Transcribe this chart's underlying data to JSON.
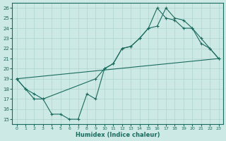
{
  "xlabel": "Humidex (Indice chaleur)",
  "xlim": [
    -0.5,
    23.5
  ],
  "ylim": [
    14.5,
    26.5
  ],
  "xticks": [
    0,
    1,
    2,
    3,
    4,
    5,
    6,
    7,
    8,
    9,
    10,
    11,
    12,
    13,
    14,
    15,
    16,
    17,
    18,
    19,
    20,
    21,
    22,
    23
  ],
  "yticks": [
    15,
    16,
    17,
    18,
    19,
    20,
    21,
    22,
    23,
    24,
    25,
    26
  ],
  "bg_color": "#cce9e5",
  "line_color": "#1a6b5e",
  "grid_color": "#aed4cf",
  "line1_x": [
    0,
    1,
    2,
    3,
    4,
    5,
    6,
    7,
    8,
    9,
    10,
    11,
    12,
    13,
    14,
    15,
    16,
    17,
    18,
    19,
    20,
    21,
    22,
    23
  ],
  "line1_y": [
    19,
    18,
    17,
    17,
    15.5,
    15.5,
    15,
    15,
    17.5,
    17,
    20,
    20.5,
    22,
    22.2,
    23,
    24,
    24.2,
    26,
    25,
    24.8,
    24,
    22.5,
    22,
    21
  ],
  "line2_x": [
    0,
    1,
    2,
    3,
    9,
    10,
    11,
    12,
    13,
    14,
    15,
    16,
    17,
    18,
    19,
    20,
    21,
    22,
    23
  ],
  "line2_y": [
    19,
    18,
    17.5,
    17,
    19,
    20,
    20.5,
    22,
    22.2,
    23,
    24,
    26,
    25,
    24.8,
    24,
    24,
    23,
    22,
    21
  ],
  "line3_x": [
    0,
    23
  ],
  "line3_y": [
    19,
    21
  ]
}
